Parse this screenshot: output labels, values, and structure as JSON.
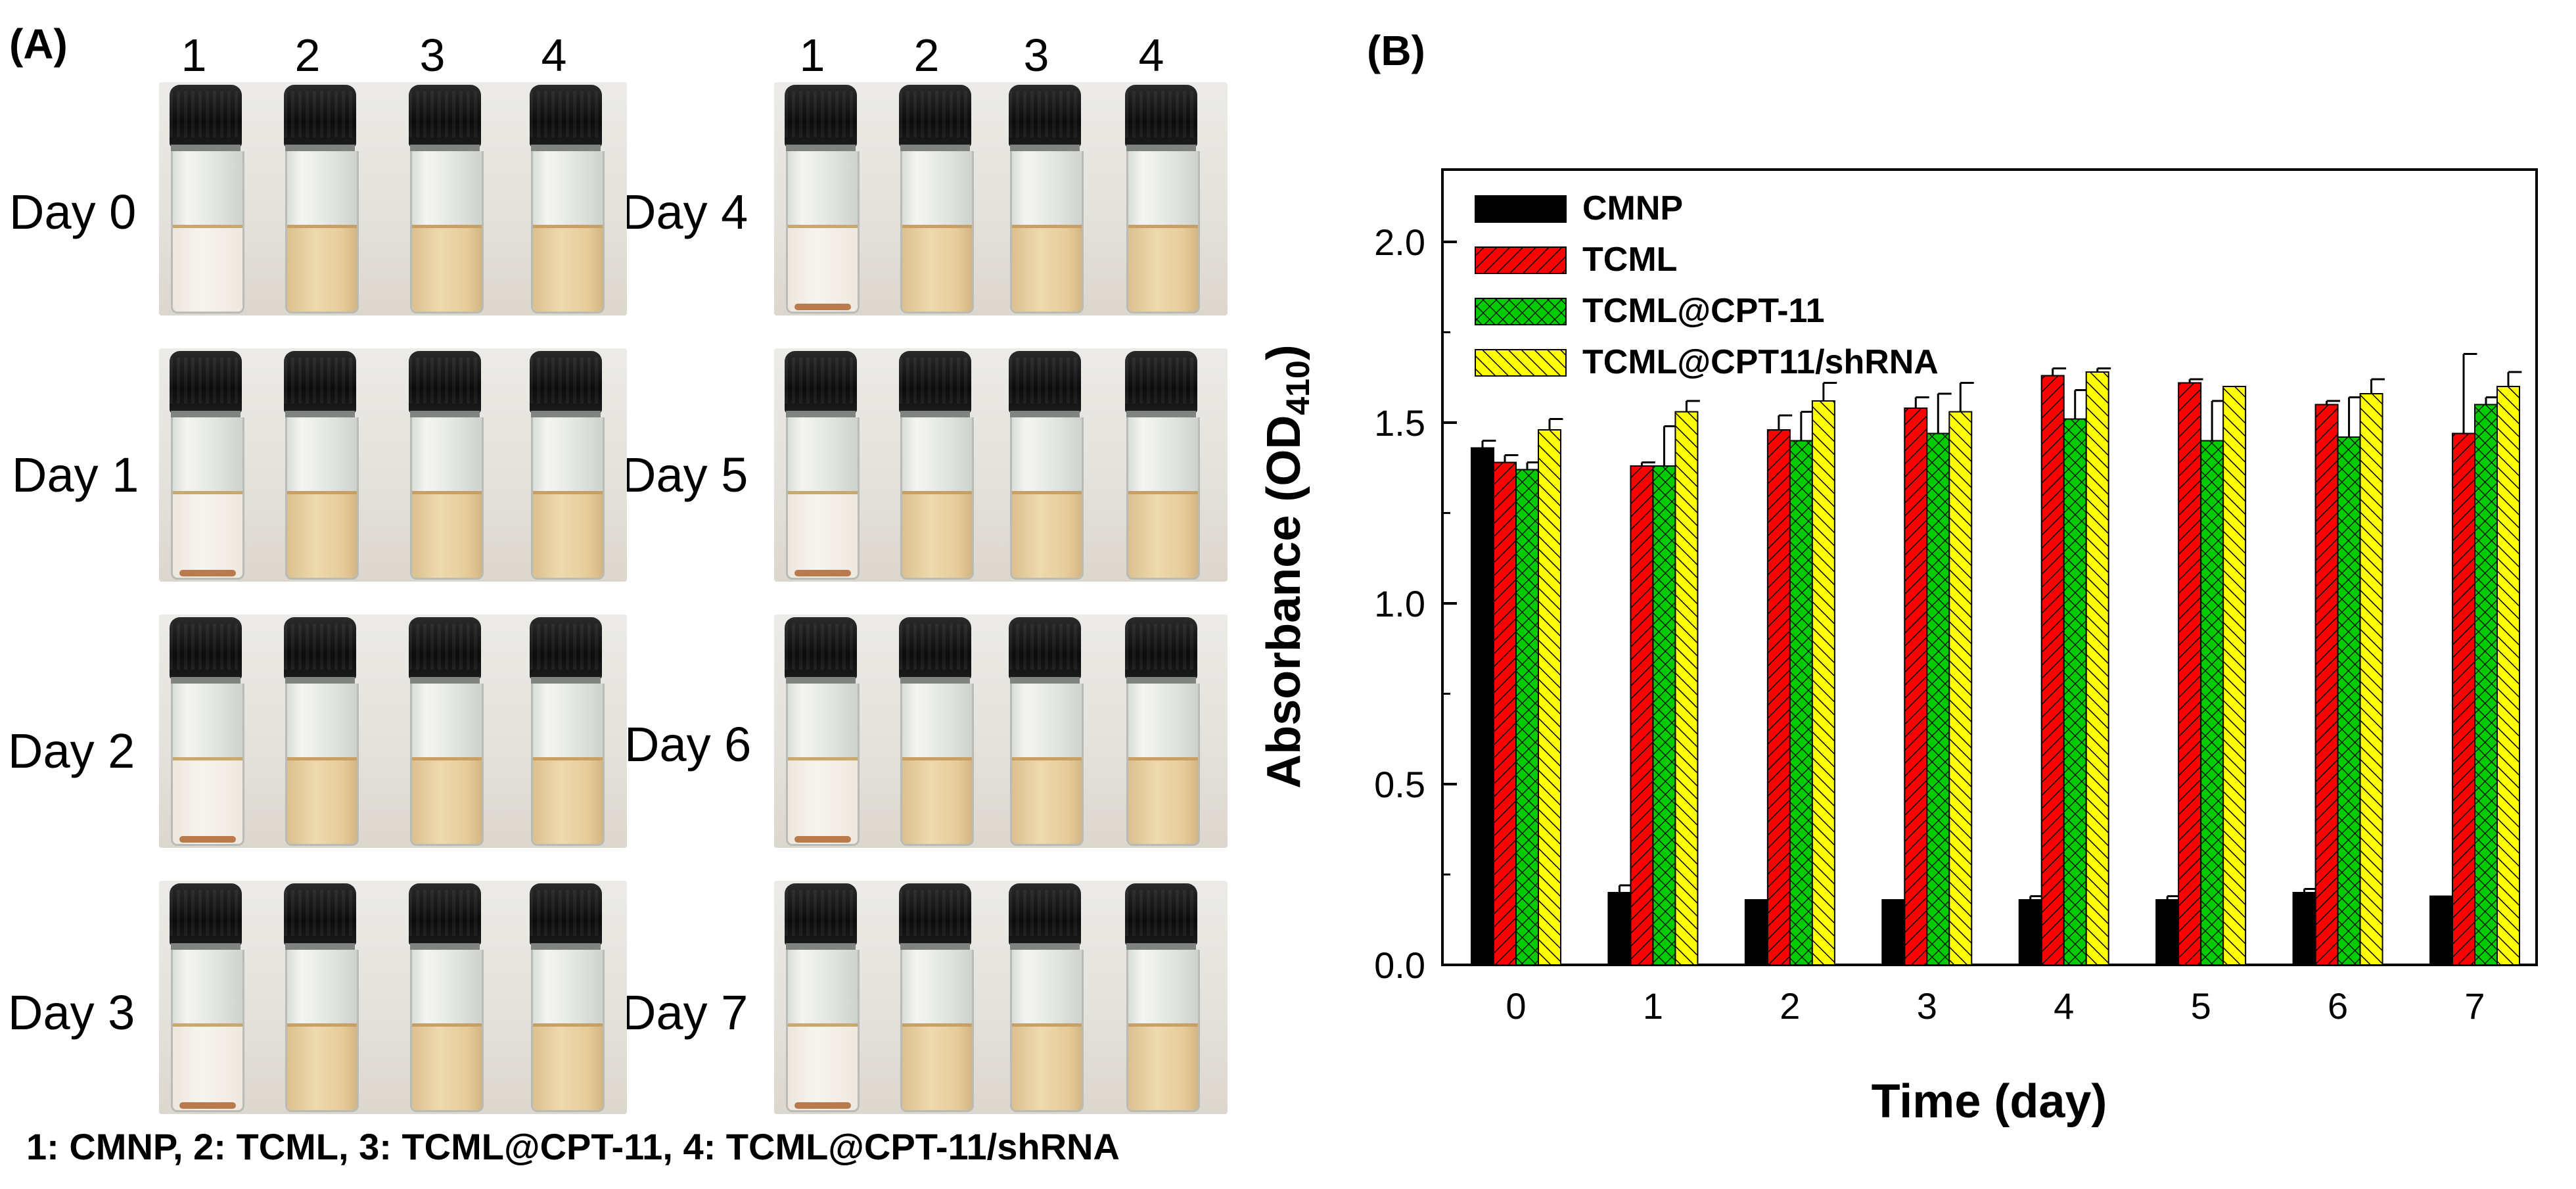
{
  "panel_a": {
    "label": "(A)",
    "vial_numbers": [
      "1",
      "2",
      "3",
      "4"
    ],
    "days": [
      "Day 0",
      "Day 1",
      "Day 2",
      "Day 3",
      "Day 4",
      "Day 5",
      "Day 6",
      "Day 7"
    ],
    "caption": "1: CMNP, 2: TCML, 3: TCML@CPT-11, 4: TCML@CPT-11/shRNA"
  },
  "panel_b": {
    "label": "(B)"
  },
  "colors": {
    "CMNP": "#000000",
    "TCML": "#ff0000",
    "TCML@CPT-11": "#00cc00",
    "TCML@CPT11/shRNA": "#ffff00"
  },
  "chart_data": {
    "type": "bar",
    "title": "",
    "xlabel": "Time (day)",
    "ylabel_main": "Absorbance (OD",
    "ylabel_sub": "410",
    "ylabel_close": ")",
    "ylim": [
      0,
      2.2
    ],
    "yticks": [
      "0.0",
      "0.5",
      "1.0",
      "1.5",
      "2.0"
    ],
    "categories": [
      "0",
      "1",
      "2",
      "3",
      "4",
      "5",
      "6",
      "7"
    ],
    "legend_position": "top-left",
    "series": [
      {
        "name": "CMNP",
        "values": [
          1.43,
          0.2,
          0.18,
          0.18,
          0.18,
          0.18,
          0.2,
          0.19
        ],
        "errors": [
          0.02,
          0.02,
          0.0,
          0.0,
          0.01,
          0.01,
          0.01,
          0.0
        ]
      },
      {
        "name": "TCML",
        "values": [
          1.39,
          1.38,
          1.48,
          1.54,
          1.63,
          1.61,
          1.55,
          1.47
        ],
        "errors": [
          0.02,
          0.01,
          0.04,
          0.03,
          0.02,
          0.01,
          0.01,
          0.22
        ]
      },
      {
        "name": "TCML@CPT-11",
        "values": [
          1.37,
          1.38,
          1.45,
          1.47,
          1.51,
          1.45,
          1.46,
          1.55
        ],
        "errors": [
          0.02,
          0.11,
          0.08,
          0.11,
          0.08,
          0.11,
          0.11,
          0.02
        ]
      },
      {
        "name": "TCML@CPT11/shRNA",
        "values": [
          1.48,
          1.53,
          1.56,
          1.53,
          1.64,
          1.6,
          1.58,
          1.6
        ],
        "errors": [
          0.03,
          0.03,
          0.05,
          0.08,
          0.01,
          0.0,
          0.04,
          0.04
        ]
      }
    ]
  }
}
